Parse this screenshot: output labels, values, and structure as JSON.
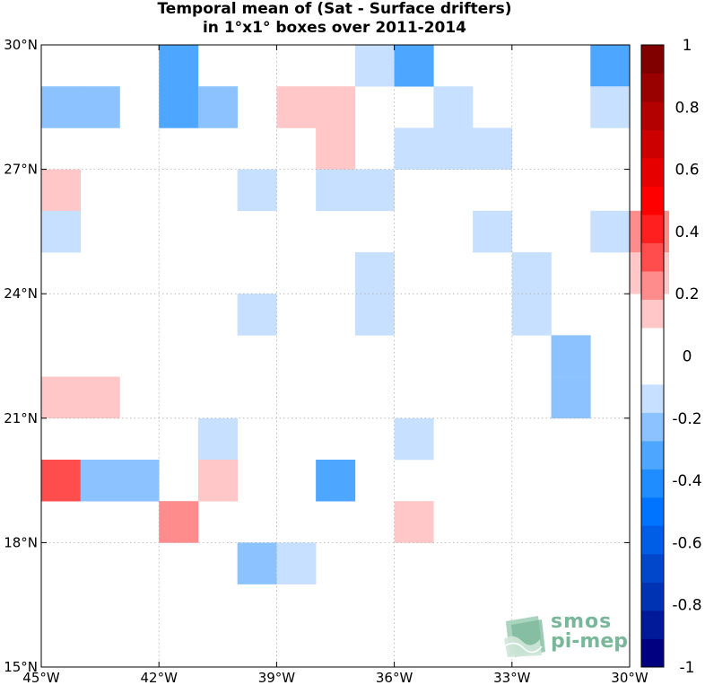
{
  "title": {
    "line1": "Temporal mean of (Sat - Surface drifters)",
    "line2": "in 1°x1° boxes over 2011-2014"
  },
  "axes": {
    "lon_range": [
      -45,
      -30
    ],
    "lat_range": [
      15,
      30
    ],
    "x_ticks": [
      {
        "value": -45,
        "label": "45°W"
      },
      {
        "value": -42,
        "label": "42°W"
      },
      {
        "value": -39,
        "label": "39°W"
      },
      {
        "value": -36,
        "label": "36°W"
      },
      {
        "value": -33,
        "label": "33°W"
      },
      {
        "value": -30,
        "label": "30°W"
      }
    ],
    "y_ticks": [
      {
        "value": 30,
        "label": "30°N"
      },
      {
        "value": 27,
        "label": "27°N"
      },
      {
        "value": 24,
        "label": "24°N"
      },
      {
        "value": 21,
        "label": "21°N"
      },
      {
        "value": 18,
        "label": "18°N"
      },
      {
        "value": 15,
        "label": "15°N"
      }
    ],
    "grid": true
  },
  "colorbar": {
    "range": [
      -1,
      1
    ],
    "colors": [
      "#000080",
      "#001a99",
      "#0033b3",
      "#0047cc",
      "#005ee6",
      "#0073ff",
      "#1f8cff",
      "#4da6ff",
      "#8cc2ff",
      "#c7e0ff",
      "#ffffff",
      "#ffffff",
      "#ffc7c7",
      "#ff8c8c",
      "#ff4d4d",
      "#ff1f1f",
      "#ff0000",
      "#e60000",
      "#cc0000",
      "#b30000",
      "#990000",
      "#800000"
    ],
    "ticks": [
      {
        "value": 1,
        "label": "1"
      },
      {
        "value": 0.8,
        "label": "0.8"
      },
      {
        "value": 0.6,
        "label": "0.6"
      },
      {
        "value": 0.4,
        "label": "0.4"
      },
      {
        "value": 0.2,
        "label": "0.2"
      },
      {
        "value": 0,
        "label": "0"
      },
      {
        "value": -0.2,
        "label": "-0.2"
      },
      {
        "value": -0.4,
        "label": "-0.4"
      },
      {
        "value": -0.6,
        "label": "-0.6"
      },
      {
        "value": -0.8,
        "label": "-0.8"
      },
      {
        "value": -1,
        "label": "-1"
      }
    ]
  },
  "chart_data": {
    "type": "heatmap",
    "title": "Temporal mean of (Sat - Surface drifters) in 1°x1° boxes over 2011-2014",
    "xlabel": "",
    "ylabel": "",
    "xlim": [
      -45,
      -30
    ],
    "ylim": [
      15,
      30
    ],
    "clim": [
      -1,
      1
    ],
    "grid": true,
    "cell_size_deg": 1,
    "cells": [
      {
        "lon": -42,
        "lat": 29,
        "value": -0.35
      },
      {
        "lon": -37,
        "lat": 29,
        "value": -0.15
      },
      {
        "lon": -36,
        "lat": 29,
        "value": -0.3
      },
      {
        "lon": -31,
        "lat": 29,
        "value": -0.3
      },
      {
        "lon": -45,
        "lat": 28,
        "value": -0.25
      },
      {
        "lon": -44,
        "lat": 28,
        "value": -0.25
      },
      {
        "lon": -42,
        "lat": 28,
        "value": -0.35
      },
      {
        "lon": -41,
        "lat": 28,
        "value": -0.25
      },
      {
        "lon": -39,
        "lat": 28,
        "value": 0.15
      },
      {
        "lon": -38,
        "lat": 28,
        "value": 0.15
      },
      {
        "lon": -35,
        "lat": 28,
        "value": -0.15
      },
      {
        "lon": -31,
        "lat": 28,
        "value": -0.15
      },
      {
        "lon": -38,
        "lat": 27,
        "value": 0.15
      },
      {
        "lon": -36,
        "lat": 27,
        "value": -0.15
      },
      {
        "lon": -35,
        "lat": 27,
        "value": -0.15
      },
      {
        "lon": -34,
        "lat": 27,
        "value": -0.15
      },
      {
        "lon": -45,
        "lat": 26,
        "value": 0.15
      },
      {
        "lon": -40,
        "lat": 26,
        "value": -0.15
      },
      {
        "lon": -38,
        "lat": 26,
        "value": -0.15
      },
      {
        "lon": -37,
        "lat": 26,
        "value": -0.15
      },
      {
        "lon": -45,
        "lat": 25,
        "value": -0.15
      },
      {
        "lon": -34,
        "lat": 25,
        "value": -0.15
      },
      {
        "lon": -31,
        "lat": 25,
        "value": -0.15
      },
      {
        "lon": -30,
        "lat": 25,
        "value": 0.25
      },
      {
        "lon": -37,
        "lat": 24,
        "value": -0.15
      },
      {
        "lon": -33,
        "lat": 24,
        "value": -0.15
      },
      {
        "lon": -30,
        "lat": 24,
        "value": 0.15
      },
      {
        "lon": -40,
        "lat": 23,
        "value": -0.15
      },
      {
        "lon": -37,
        "lat": 23,
        "value": -0.15
      },
      {
        "lon": -33,
        "lat": 23,
        "value": -0.15
      },
      {
        "lon": -32,
        "lat": 22,
        "value": -0.25
      },
      {
        "lon": -45,
        "lat": 21,
        "value": 0.15
      },
      {
        "lon": -44,
        "lat": 21,
        "value": 0.15
      },
      {
        "lon": -32,
        "lat": 21,
        "value": -0.25
      },
      {
        "lon": -41,
        "lat": 20,
        "value": -0.15
      },
      {
        "lon": -36,
        "lat": 20,
        "value": -0.15
      },
      {
        "lon": -45,
        "lat": 19,
        "value": 0.35
      },
      {
        "lon": -44,
        "lat": 19,
        "value": -0.25
      },
      {
        "lon": -43,
        "lat": 19,
        "value": -0.25
      },
      {
        "lon": -41,
        "lat": 19,
        "value": 0.15
      },
      {
        "lon": -38,
        "lat": 19,
        "value": -0.35
      },
      {
        "lon": -42,
        "lat": 18,
        "value": 0.25
      },
      {
        "lon": -36,
        "lat": 18,
        "value": 0.15
      },
      {
        "lon": -40,
        "lat": 17,
        "value": -0.25
      },
      {
        "lon": -39,
        "lat": 17,
        "value": -0.15
      }
    ]
  },
  "logo": {
    "line1": "smos",
    "line2": "pi-mep",
    "color": "#7ab79a"
  }
}
